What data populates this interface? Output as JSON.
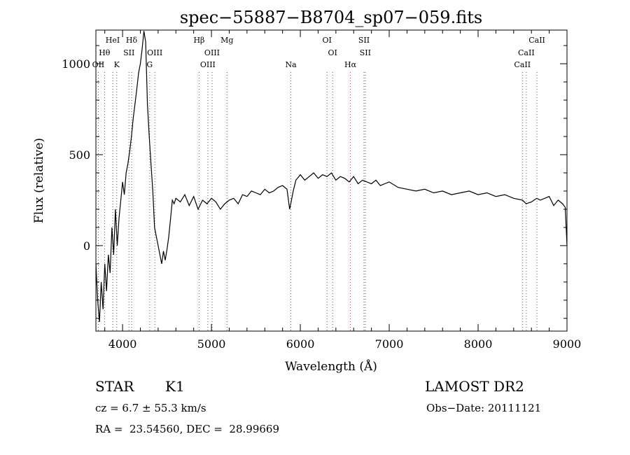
{
  "chart_data": {
    "type": "line",
    "title": "spec−55887−B8704_sp07−059.fits",
    "xlabel": "Wavelength (Å)",
    "ylabel": "Flux (relative)",
    "xlim": [
      3700,
      9000
    ],
    "ylim": [
      -470,
      1185
    ],
    "xticks": [
      4000,
      5000,
      6000,
      7000,
      8000,
      9000
    ],
    "xtick_labels": [
      "4000",
      "5000",
      "6000",
      "7000",
      "8000",
      "9000"
    ],
    "yticks": [
      0,
      500,
      1000
    ],
    "ytick_labels": [
      "0",
      "500",
      "1000"
    ],
    "grid": false,
    "series": [
      {
        "x": [
          3700,
          3720,
          3740,
          3760,
          3780,
          3800,
          3820,
          3840,
          3860,
          3880,
          3900,
          3920,
          3940,
          3960,
          3980,
          4000,
          4020,
          4040,
          4060,
          4080,
          4100,
          4120,
          4140,
          4160,
          4180,
          4200,
          4220,
          4240,
          4260,
          4280,
          4300,
          4320,
          4340,
          4360,
          4380,
          4400,
          4420,
          4440,
          4460,
          4480,
          4500,
          4520,
          4540,
          4560,
          4580,
          4600,
          4650,
          4700,
          4750,
          4800,
          4850,
          4900,
          4950,
          5000,
          5050,
          5100,
          5150,
          5200,
          5250,
          5300,
          5350,
          5400,
          5450,
          5500,
          5550,
          5600,
          5650,
          5700,
          5750,
          5800,
          5850,
          5880,
          5900,
          5920,
          5950,
          6000,
          6050,
          6100,
          6150,
          6200,
          6250,
          6300,
          6350,
          6400,
          6450,
          6500,
          6550,
          6600,
          6650,
          6700,
          6750,
          6800,
          6850,
          6900,
          6950,
          7000,
          7100,
          7200,
          7300,
          7400,
          7500,
          7600,
          7700,
          7800,
          7900,
          8000,
          8100,
          8200,
          8300,
          8400,
          8500,
          8540,
          8600,
          8660,
          8700,
          8800,
          8850,
          8900,
          8950,
          8980,
          9000
        ],
        "y": [
          -100,
          -300,
          -420,
          -200,
          -350,
          -100,
          -250,
          -50,
          -150,
          100,
          -50,
          200,
          0,
          150,
          250,
          350,
          280,
          400,
          450,
          520,
          600,
          700,
          780,
          860,
          950,
          1000,
          1080,
          1180,
          1120,
          780,
          600,
          450,
          300,
          100,
          50,
          0,
          -50,
          -100,
          -30,
          -80,
          -20,
          50,
          150,
          250,
          230,
          260,
          240,
          280,
          220,
          270,
          200,
          250,
          230,
          260,
          240,
          200,
          230,
          250,
          260,
          230,
          280,
          270,
          300,
          290,
          280,
          310,
          290,
          300,
          320,
          330,
          310,
          200,
          250,
          300,
          360,
          390,
          360,
          380,
          400,
          370,
          390,
          380,
          400,
          360,
          380,
          370,
          350,
          380,
          340,
          360,
          350,
          340,
          360,
          330,
          340,
          350,
          320,
          310,
          300,
          310,
          290,
          300,
          280,
          290,
          300,
          280,
          290,
          270,
          280,
          260,
          250,
          230,
          240,
          260,
          250,
          270,
          220,
          250,
          230,
          210,
          0
        ]
      }
    ],
    "line_labels": [
      {
        "text": "OII",
        "x": 3727,
        "row": 3
      },
      {
        "text": "Hθ",
        "x": 3797,
        "row": 2
      },
      {
        "text": "HeI",
        "x": 3889,
        "row": 1
      },
      {
        "text": "K",
        "x": 3934,
        "row": 3
      },
      {
        "text": "SII",
        "x": 4072,
        "row": 2
      },
      {
        "text": "Hδ",
        "x": 4102,
        "row": 1
      },
      {
        "text": "G",
        "x": 4305,
        "row": 3
      },
      {
        "text": "OIII",
        "x": 4363,
        "row": 2
      },
      {
        "text": "Hβ",
        "x": 4861,
        "row": 1
      },
      {
        "text": "OIII",
        "x": 4959,
        "row": 3
      },
      {
        "text": "OIII",
        "x": 5007,
        "row": 2
      },
      {
        "text": "Mg",
        "x": 5175,
        "row": 1
      },
      {
        "text": "Na",
        "x": 5894,
        "row": 3
      },
      {
        "text": "OI",
        "x": 6300,
        "row": 1
      },
      {
        "text": "OI",
        "x": 6363,
        "row": 2
      },
      {
        "text": "Hα",
        "x": 6563,
        "row": 3
      },
      {
        "text": "SII",
        "x": 6716,
        "row": 1
      },
      {
        "text": "SII",
        "x": 6731,
        "row": 2
      },
      {
        "text": "CaII",
        "x": 8498,
        "row": 3
      },
      {
        "text": "CaII",
        "x": 8542,
        "row": 2
      },
      {
        "text": "CaII",
        "x": 8662,
        "row": 1
      }
    ]
  },
  "info": {
    "class_label": "STAR",
    "subclass": "K1",
    "survey": "LAMOST DR2",
    "cz": "cz = 6.7 ± 55.3 km/s",
    "obs_date": "Obs−Date: 20111121",
    "coords": "RA =  23.54560, DEC =  28.99669"
  }
}
